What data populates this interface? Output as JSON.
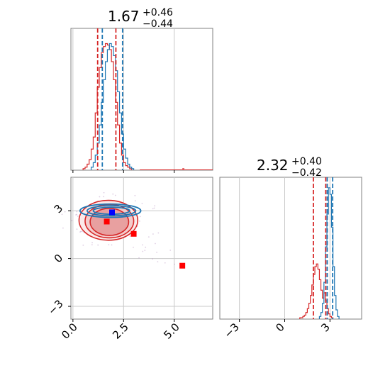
{
  "chart_data": [
    {
      "type": "histogram",
      "panel": "top-left",
      "title": {
        "median": "1.67",
        "plus": "+0.46",
        "minus": "−0.44"
      },
      "xlim": [
        -0.1,
        6.9
      ],
      "grid": true,
      "colors": {
        "red": "#d62728",
        "blue": "#1f77b4"
      },
      "quantiles": {
        "red": [
          1.22,
          2.12
        ],
        "blue": [
          1.45,
          2.45
        ]
      },
      "median_lines": {
        "red": 1.67,
        "blue": 1.93
      },
      "bin_width": 0.1,
      "series": [
        {
          "color": "red",
          "x_start": 0.5,
          "values": [
            1,
            2,
            4,
            7,
            14,
            22,
            38,
            55,
            68,
            78,
            82,
            84,
            83,
            80,
            72,
            60,
            45,
            30,
            18,
            10,
            5,
            3,
            2,
            1
          ]
        },
        {
          "color": "blue",
          "x_start": 0.9,
          "values": [
            2,
            5,
            10,
            18,
            30,
            45,
            60,
            72,
            80,
            84,
            82,
            76,
            66,
            52,
            38,
            24,
            14,
            8,
            4,
            2,
            1
          ]
        }
      ],
      "outliers": [
        {
          "x": 5.4,
          "value": 1
        }
      ]
    },
    {
      "type": "scatter",
      "panel": "bottom-left",
      "xlim": [
        -0.1,
        6.9
      ],
      "ylim": [
        -3.8,
        5.1
      ],
      "xticks": [
        "0.0",
        "2.5",
        "5.0"
      ],
      "yticks": [
        "−3",
        "0",
        "3"
      ],
      "grid": true,
      "red_contours": [
        {
          "cx": 1.8,
          "cy": 2.3,
          "rx": 0.95,
          "ry": 0.85
        },
        {
          "cx": 1.8,
          "cy": 2.35,
          "rx": 1.2,
          "ry": 1.05
        },
        {
          "cx": 1.75,
          "cy": 2.4,
          "rx": 1.45,
          "ry": 1.25
        }
      ],
      "blue_contours": [
        {
          "cx": 1.9,
          "cy": 3.0,
          "rx": 0.9,
          "ry": 0.22
        },
        {
          "cx": 1.9,
          "cy": 3.0,
          "rx": 1.2,
          "ry": 0.32
        },
        {
          "cx": 1.85,
          "cy": 3.0,
          "rx": 1.5,
          "ry": 0.42
        }
      ],
      "markers": [
        {
          "x": 1.93,
          "y": 2.9,
          "color": "blue"
        },
        {
          "x": 1.67,
          "y": 2.32,
          "color": "red"
        },
        {
          "x": 3.0,
          "y": 1.55,
          "color": "red"
        },
        {
          "x": 5.4,
          "y": -0.45,
          "color": "red"
        }
      ]
    },
    {
      "type": "histogram",
      "panel": "bottom-right",
      "title": {
        "median": "2.32",
        "plus": "+0.40",
        "minus": "−0.42"
      },
      "xlim": [
        -4.3,
        5.1
      ],
      "xticks": [
        "−3",
        "0",
        "3"
      ],
      "grid": true,
      "quantiles": {
        "red": [
          1.9,
          2.72
        ],
        "blue": [
          2.82,
          3.18
        ]
      },
      "median_lines": {
        "red": 2.32,
        "blue": 3.0
      },
      "bin_width": 0.1,
      "series": [
        {
          "color": "red",
          "x_start": 1.0,
          "values": [
            1,
            1,
            2,
            3,
            5,
            8,
            12,
            18,
            26,
            34,
            40,
            42,
            38,
            30,
            22,
            16,
            20,
            14,
            8,
            4,
            2,
            1
          ]
        },
        {
          "color": "blue",
          "x_start": 2.3,
          "values": [
            2,
            5,
            12,
            28,
            55,
            80,
            100,
            95,
            70,
            40,
            18,
            7,
            2
          ]
        }
      ]
    }
  ]
}
